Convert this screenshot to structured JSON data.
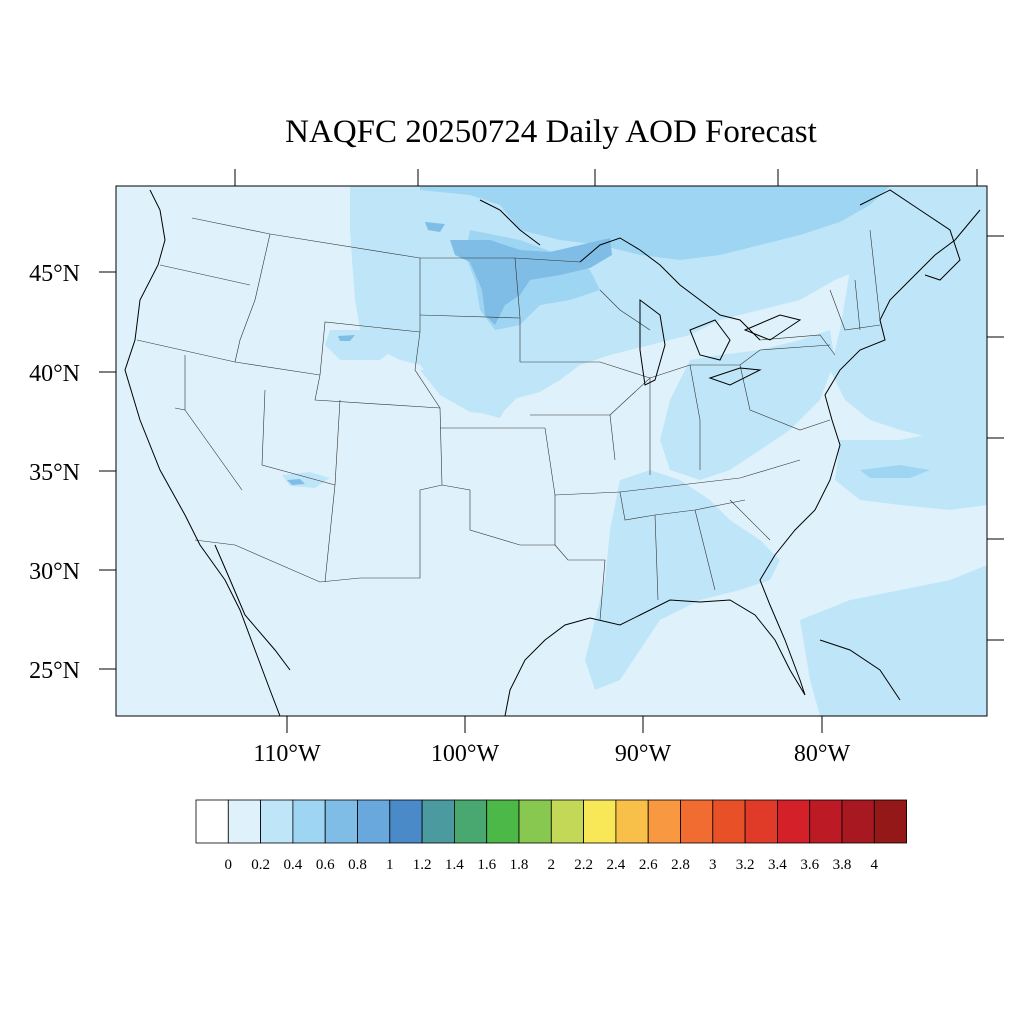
{
  "title": "NAQFC 20250724 Daily AOD Forecast",
  "lat_labels": [
    "45°N",
    "40°N",
    "35°N",
    "30°N",
    "25°N"
  ],
  "lon_labels": [
    "110°W",
    "100°W",
    "90°W",
    "80°W"
  ],
  "colorbar": {
    "labels": [
      "0",
      "0.2",
      "0.4",
      "0.6",
      "0.8",
      "1",
      "1.2",
      "1.4",
      "1.6",
      "1.8",
      "2",
      "2.2",
      "2.4",
      "2.6",
      "2.8",
      "3",
      "3.2",
      "3.4",
      "3.6",
      "3.8",
      "4"
    ],
    "colors": [
      "#ffffff",
      "#dff2fb",
      "#bfe6f8",
      "#9dd5f3",
      "#7fbde6",
      "#68a8dc",
      "#4a8ac8",
      "#4a9aa0",
      "#48a870",
      "#4cb848",
      "#88c850",
      "#c4d858",
      "#f8e858",
      "#f8c048",
      "#f89840",
      "#f06c30",
      "#e85028",
      "#e03a28",
      "#d42028",
      "#bc1a24",
      "#a81820",
      "#941818"
    ]
  },
  "colors": {
    "background_aod": "#dff2fb",
    "light_aod": "#bfe6f8",
    "medium_aod": "#9dd5f3",
    "high_aod": "#7fbde6"
  }
}
